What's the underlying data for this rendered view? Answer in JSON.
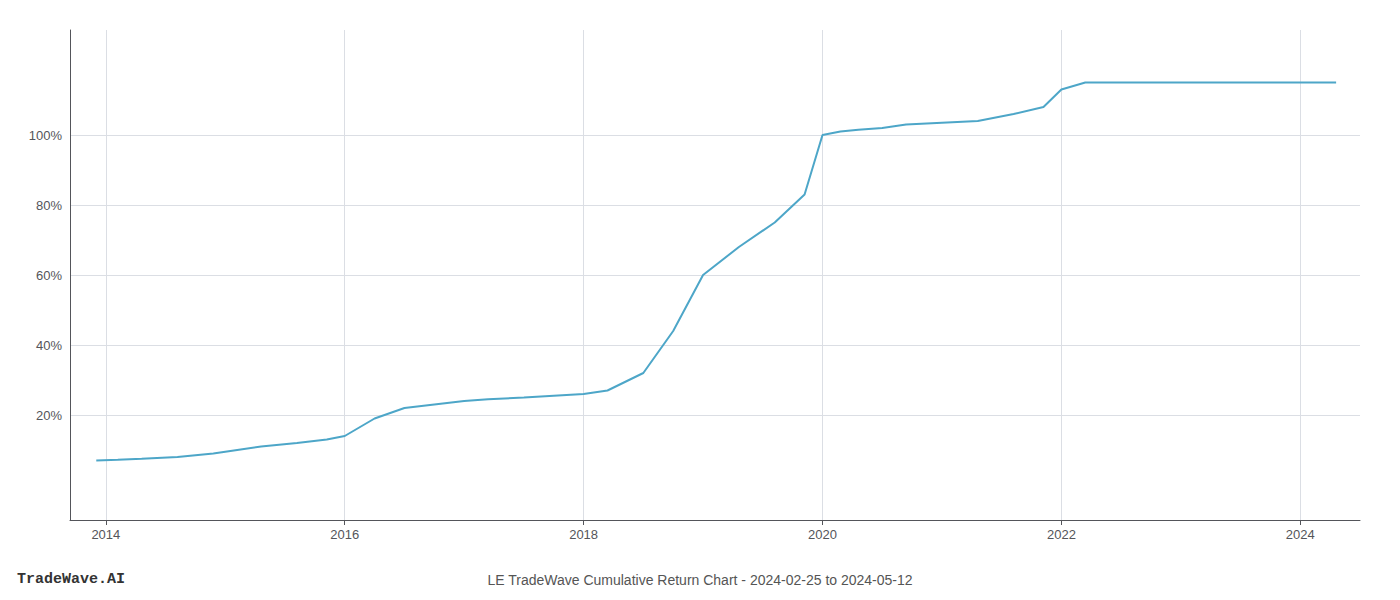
{
  "chart_data": {
    "type": "line",
    "title": "LE TradeWave Cumulative Return Chart - 2024-02-25 to 2024-05-12",
    "annotations": [
      {
        "text": "TradeWave.AI"
      }
    ],
    "color": "#4da6c8",
    "x": [
      2013.92,
      2014.1,
      2014.3,
      2014.6,
      2014.9,
      2015.1,
      2015.3,
      2015.6,
      2015.85,
      2016.0,
      2016.25,
      2016.5,
      2016.75,
      2017.0,
      2017.2,
      2017.5,
      2017.75,
      2018.0,
      2018.2,
      2018.5,
      2018.75,
      2019.0,
      2019.3,
      2019.6,
      2019.85,
      2020.0,
      2020.15,
      2020.3,
      2020.5,
      2020.7,
      2021.0,
      2021.3,
      2021.6,
      2021.85,
      2022.0,
      2022.2,
      2022.5,
      2022.8,
      2023.1,
      2023.4,
      2023.7,
      2024.0,
      2024.3
    ],
    "values": [
      7,
      7.2,
      7.5,
      8,
      9,
      10,
      11,
      12,
      13,
      14,
      19,
      22,
      23,
      24,
      24.5,
      25,
      25.5,
      26,
      27,
      32,
      44,
      60,
      68,
      75,
      83,
      100,
      101,
      101.5,
      102,
      103,
      103.5,
      104,
      106,
      108,
      113,
      115,
      115,
      115,
      115,
      115,
      115,
      115,
      115
    ],
    "xlim": [
      2013.7,
      2024.5
    ],
    "xticks": [
      2014,
      2016,
      2018,
      2020,
      2022,
      2024
    ],
    "ylim": [
      -10,
      130
    ],
    "yticks": [
      {
        "value": 20,
        "label": "20%"
      },
      {
        "value": 40,
        "label": "40%"
      },
      {
        "value": 60,
        "label": "60%"
      },
      {
        "value": 80,
        "label": "80%"
      },
      {
        "value": 100,
        "label": "100%"
      }
    ],
    "grid": true
  }
}
